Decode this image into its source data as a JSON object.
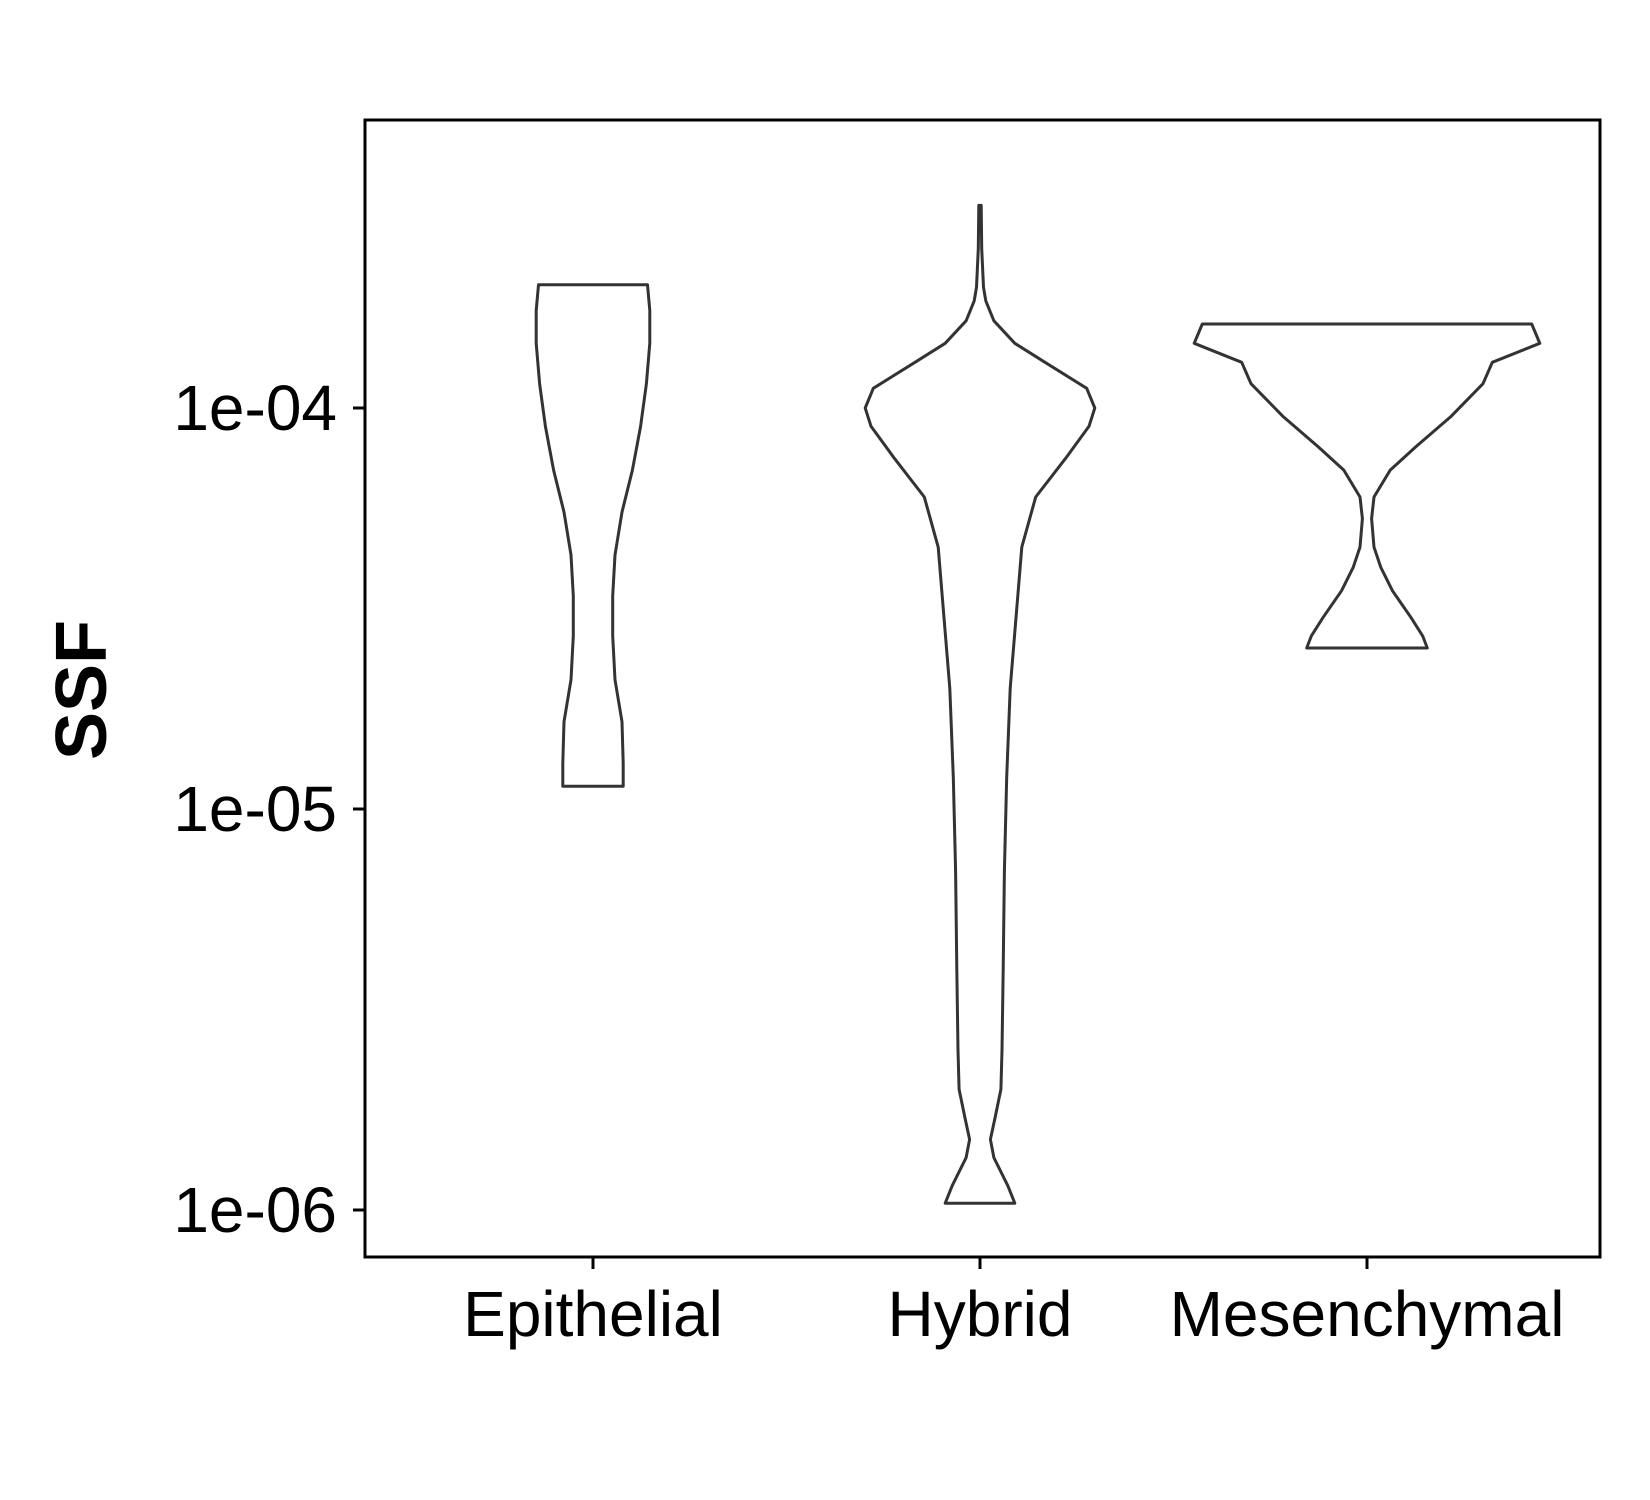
{
  "chart_data": {
    "type": "violin",
    "ylabel": "SSF",
    "xlabel": "",
    "y_scale": "log10",
    "ylim": [
      7.8e-07,
      0.000356
    ],
    "y_ticks": [
      {
        "value": 0.0001,
        "label": "1e-04"
      },
      {
        "value": 1e-05,
        "label": "1e-05"
      },
      {
        "value": 1e-06,
        "label": "1e-06"
      }
    ],
    "categories": [
      "Epithelial",
      "Hybrid",
      "Mesenchymal"
    ],
    "series": [
      {
        "category": "Epithelial",
        "min": 1.14e-05,
        "max": 0.000203,
        "density": [
          {
            "y": 1.14e-05,
            "w": 0.26
          },
          {
            "y": 1.3e-05,
            "w": 0.26
          },
          {
            "y": 1.65e-05,
            "w": 0.25
          },
          {
            "y": 2.1e-05,
            "w": 0.19
          },
          {
            "y": 2.7e-05,
            "w": 0.17
          },
          {
            "y": 3.4e-05,
            "w": 0.17
          },
          {
            "y": 4.3e-05,
            "w": 0.19
          },
          {
            "y": 5.5e-05,
            "w": 0.25
          },
          {
            "y": 7e-05,
            "w": 0.34
          },
          {
            "y": 9e-05,
            "w": 0.41
          },
          {
            "y": 0.000115,
            "w": 0.46
          },
          {
            "y": 0.000145,
            "w": 0.49
          },
          {
            "y": 0.000175,
            "w": 0.49
          },
          {
            "y": 0.000203,
            "w": 0.47
          }
        ]
      },
      {
        "category": "Hybrid",
        "min": 1.04e-06,
        "max": 0.00032,
        "density": [
          {
            "y": 1.04e-06,
            "w": 0.3
          },
          {
            "y": 1.15e-06,
            "w": 0.24
          },
          {
            "y": 1.35e-06,
            "w": 0.12
          },
          {
            "y": 1.5e-06,
            "w": 0.09
          },
          {
            "y": 1.7e-06,
            "w": 0.13
          },
          {
            "y": 2e-06,
            "w": 0.18
          },
          {
            "y": 2.5e-06,
            "w": 0.19
          },
          {
            "y": 4e-06,
            "w": 0.2
          },
          {
            "y": 7e-06,
            "w": 0.21
          },
          {
            "y": 1.2e-05,
            "w": 0.23
          },
          {
            "y": 2e-05,
            "w": 0.26
          },
          {
            "y": 3e-05,
            "w": 0.31
          },
          {
            "y": 4.5e-05,
            "w": 0.36
          },
          {
            "y": 6e-05,
            "w": 0.48
          },
          {
            "y": 7.5e-05,
            "w": 0.74
          },
          {
            "y": 9e-05,
            "w": 0.94
          },
          {
            "y": 0.0001,
            "w": 0.99
          },
          {
            "y": 0.000112,
            "w": 0.92
          },
          {
            "y": 0.00013,
            "w": 0.56
          },
          {
            "y": 0.000145,
            "w": 0.3
          },
          {
            "y": 0.000165,
            "w": 0.12
          },
          {
            "y": 0.000185,
            "w": 0.05
          },
          {
            "y": 0.0002,
            "w": 0.03
          },
          {
            "y": 0.00025,
            "w": 0.015
          },
          {
            "y": 0.00032,
            "w": 0.01
          }
        ]
      },
      {
        "category": "Mesenchymal",
        "min": 2.52e-05,
        "max": 0.000162,
        "density": [
          {
            "y": 2.52e-05,
            "w": 0.52
          },
          {
            "y": 2.7e-05,
            "w": 0.48
          },
          {
            "y": 3e-05,
            "w": 0.38
          },
          {
            "y": 3.5e-05,
            "w": 0.22
          },
          {
            "y": 4e-05,
            "w": 0.12
          },
          {
            "y": 4.5e-05,
            "w": 0.06
          },
          {
            "y": 5.3e-05,
            "w": 0.04
          },
          {
            "y": 6e-05,
            "w": 0.06
          },
          {
            "y": 7e-05,
            "w": 0.2
          },
          {
            "y": 8e-05,
            "w": 0.42
          },
          {
            "y": 9.5e-05,
            "w": 0.72
          },
          {
            "y": 0.000115,
            "w": 1.0
          },
          {
            "y": 0.00013,
            "w": 1.08
          },
          {
            "y": 0.000145,
            "w": 1.49
          },
          {
            "y": 0.000162,
            "w": 1.42
          }
        ]
      }
    ]
  }
}
